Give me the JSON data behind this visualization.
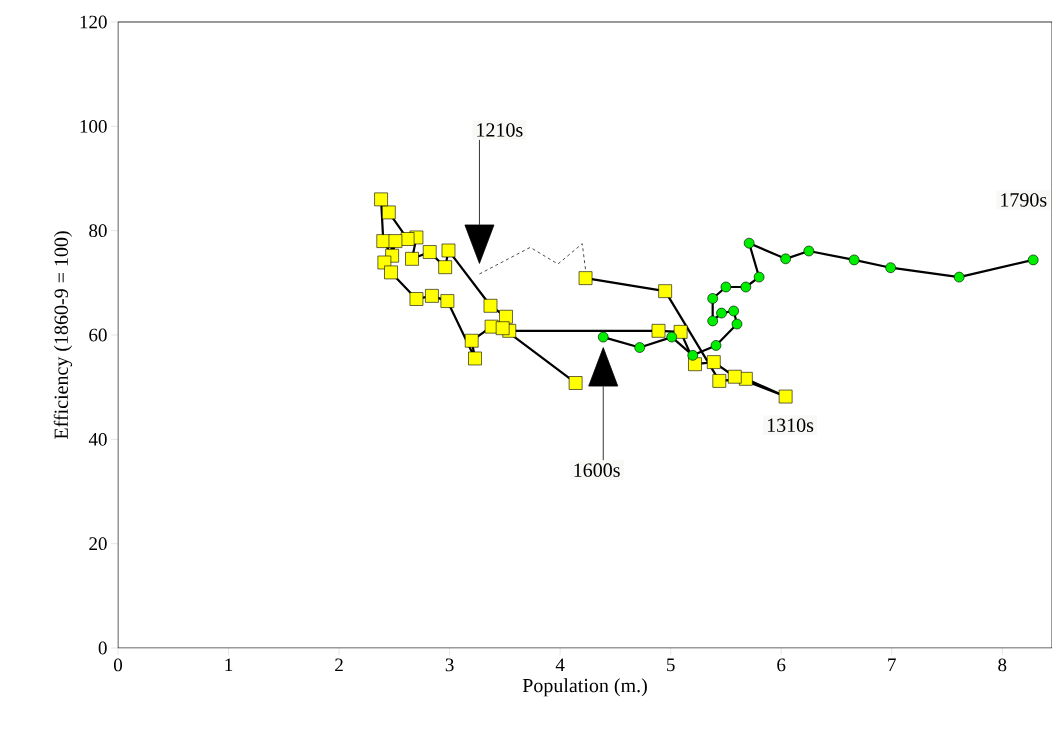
{
  "chart_data": {
    "type": "line",
    "xlabel": "Population (m.)",
    "ylabel": "Efficiency (1860-9 = 100)",
    "xlim": [
      0,
      8.45
    ],
    "ylim": [
      0,
      120
    ],
    "xticks": [
      0,
      1,
      2,
      3,
      4,
      5,
      6,
      7,
      8
    ],
    "yticks": [
      0,
      20,
      40,
      60,
      80,
      100,
      120
    ],
    "grid": false,
    "series": [
      {
        "color": "#000000",
        "marker": "none",
        "line_style": "dashed",
        "x": [
          3.27,
          3.73,
          3.98,
          4.2,
          4.23
        ],
        "values": [
          71.7,
          76.8,
          73.6,
          77.5,
          72.5
        ]
      },
      {
        "color": "#ffff00",
        "marker": "square",
        "line_style": "solid",
        "x": [
          4.23,
          4.95,
          5.44,
          5.68,
          6.04,
          5.58,
          5.39,
          5.22,
          5.09,
          4.89,
          3.54,
          3.51,
          3.37,
          2.99,
          2.96,
          2.82,
          2.66,
          2.7,
          2.62,
          2.45,
          2.38,
          2.4,
          2.48,
          2.51,
          2.41,
          2.47,
          2.7,
          2.84,
          2.98,
          3.23,
          3.2,
          3.38,
          3.48,
          4.14
        ],
        "values": [
          70.9,
          68.4,
          51.2,
          51.6,
          48.2,
          52.0,
          54.8,
          54.4,
          60.6,
          60.8,
          60.8,
          63.5,
          65.6,
          76.2,
          73.0,
          75.9,
          74.6,
          78.7,
          78.4,
          83.5,
          86.0,
          78.0,
          75.2,
          78.0,
          73.9,
          72.0,
          66.9,
          67.5,
          66.5,
          55.5,
          58.9,
          61.6,
          61.3,
          50.8
        ]
      },
      {
        "color": "#00ee00",
        "marker": "circle",
        "line_style": "solid",
        "x": [
          4.39,
          4.72,
          5.01,
          5.2,
          5.41,
          5.6,
          5.57,
          5.46,
          5.38,
          5.38,
          5.5,
          5.68,
          5.8,
          5.71,
          6.04,
          6.25,
          6.66,
          6.99,
          7.61,
          8.28
        ],
        "values": [
          59.6,
          57.6,
          59.6,
          56.1,
          58.0,
          62.1,
          64.6,
          64.2,
          62.7,
          67.0,
          69.2,
          69.2,
          71.1,
          77.6,
          74.6,
          76.1,
          74.4,
          72.9,
          71.1,
          74.4
        ]
      }
    ],
    "annotations": [
      "1210s",
      "1600s",
      {
        "text": "1310s",
        "x": 6.04,
        "y": 48.2
      },
      {
        "text": "1790s",
        "x": 8.28,
        "y": 74.4
      }
    ]
  }
}
